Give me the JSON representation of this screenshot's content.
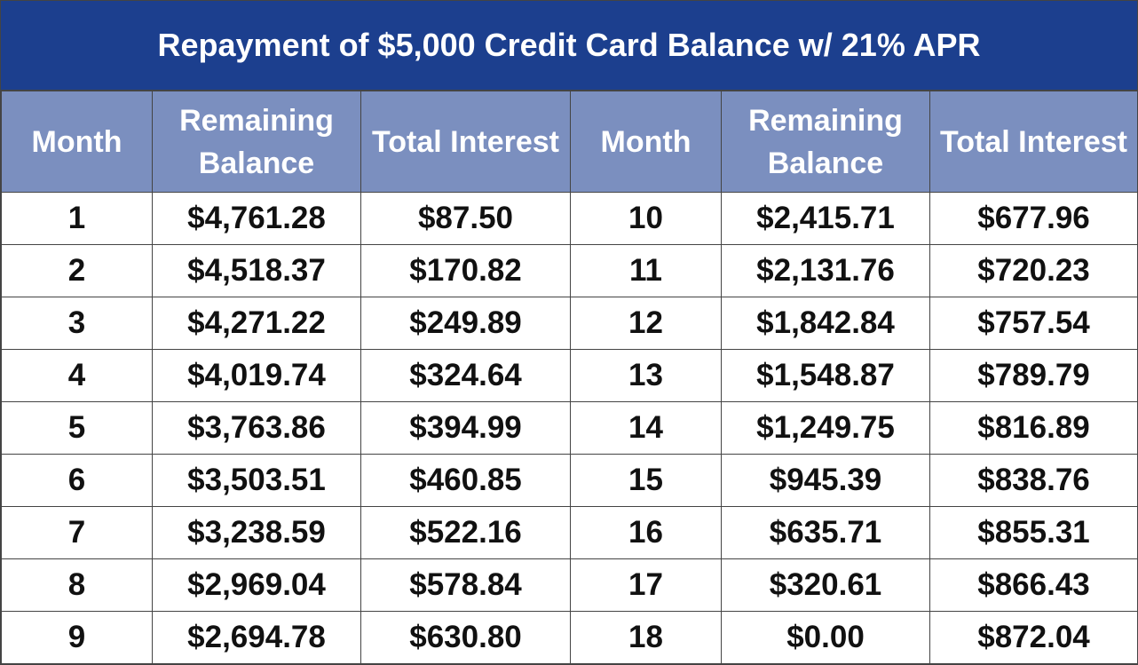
{
  "table": {
    "title": "Repayment of $5,000 Credit Card Balance w/ 21% APR",
    "header": [
      "Month",
      "Remaining Balance",
      "Total Interest",
      "Month",
      "Remaining Balance",
      "Total Interest"
    ],
    "rows": [
      [
        "1",
        "$4,761.28",
        "$87.50",
        "10",
        "$2,415.71",
        "$677.96"
      ],
      [
        "2",
        "$4,518.37",
        "$170.82",
        "11",
        "$2,131.76",
        "$720.23"
      ],
      [
        "3",
        "$4,271.22",
        "$249.89",
        "12",
        "$1,842.84",
        "$757.54"
      ],
      [
        "4",
        "$4,019.74",
        "$324.64",
        "13",
        "$1,548.87",
        "$789.79"
      ],
      [
        "5",
        "$3,763.86",
        "$394.99",
        "14",
        "$1,249.75",
        "$816.89"
      ],
      [
        "6",
        "$3,503.51",
        "$460.85",
        "15",
        "$945.39",
        "$838.76"
      ],
      [
        "7",
        "$3,238.59",
        "$522.16",
        "16",
        "$635.71",
        "$855.31"
      ],
      [
        "8",
        "$2,969.04",
        "$578.84",
        "17",
        "$320.61",
        "$866.43"
      ],
      [
        "9",
        "$2,694.78",
        "$630.80",
        "18",
        "$0.00",
        "$872.04"
      ]
    ]
  }
}
